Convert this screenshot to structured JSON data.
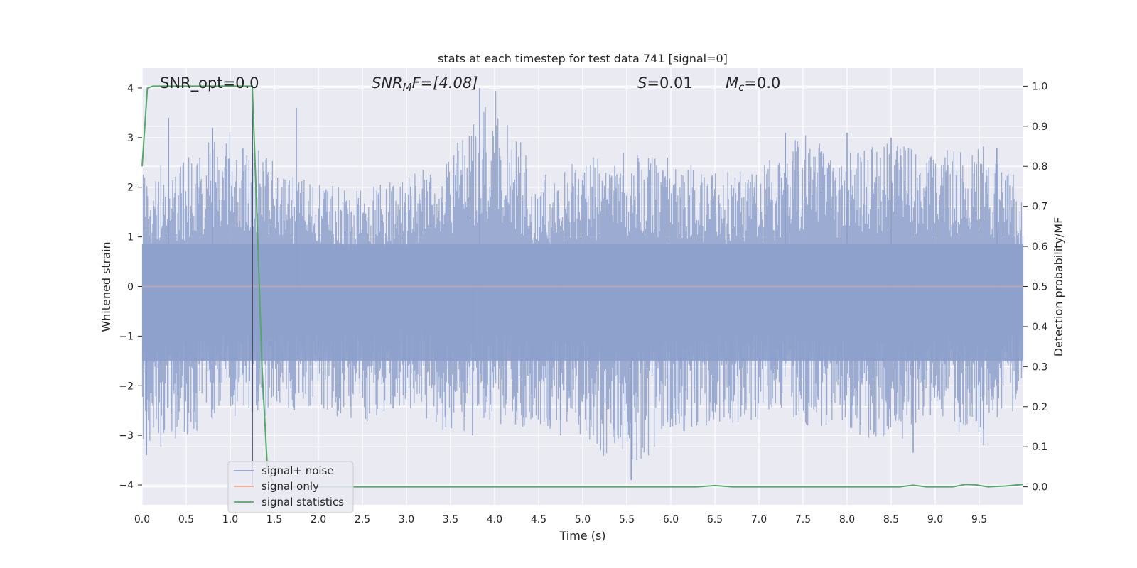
{
  "chart_data": {
    "type": "line",
    "title": "stats at each timestep for test data 741 [signal=0]",
    "xlabel": "Time (s)",
    "ylabel_left": "Whitened strain",
    "ylabel_right": "Detection probability/MF",
    "xlim": [
      0.0,
      10.0
    ],
    "ylim_left": [
      -4.4,
      4.4
    ],
    "ylim_right": [
      -0.045,
      1.045
    ],
    "xticks": [
      "0.0",
      "0.5",
      "1.0",
      "1.5",
      "2.0",
      "2.5",
      "3.0",
      "3.5",
      "4.0",
      "4.5",
      "5.0",
      "5.5",
      "6.0",
      "6.5",
      "7.0",
      "7.5",
      "8.0",
      "8.5",
      "9.0",
      "9.5"
    ],
    "yticks_left": [
      "4",
      "3",
      "2",
      "1",
      "0",
      "−1",
      "−2",
      "−3",
      "−4"
    ],
    "yticks_right": [
      "1.0",
      "0.9",
      "0.8",
      "0.7",
      "0.6",
      "0.5",
      "0.4",
      "0.3",
      "0.2",
      "0.1",
      "0.0"
    ],
    "grid": true,
    "legend_position": "lower-left",
    "annotations": {
      "snr_opt": "SNR_opt=0.0",
      "snr_mf_sym": "SNR",
      "snr_mf_sub": "M",
      "snr_mf_rest": "F=[4.08]",
      "s_sym": "S",
      "s_rest": "=0.01",
      "mc_sym": "M",
      "mc_sub": "c",
      "mc_rest": "=0.0"
    },
    "vertical_marker_x": 1.25,
    "series": [
      {
        "name": "signal+ noise",
        "color": "#8da0cb",
        "axis": "left",
        "style": "dense-noise",
        "envelope": {
          "x": [
            0.0,
            0.5,
            1.0,
            1.5,
            2.0,
            2.5,
            3.0,
            3.5,
            4.0,
            4.5,
            5.0,
            5.5,
            6.0,
            6.5,
            7.0,
            7.5,
            8.0,
            8.5,
            9.0,
            9.5,
            10.0
          ],
          "upper": [
            2.4,
            2.6,
            3.2,
            2.5,
            2.1,
            2.0,
            2.2,
            2.7,
            4.0,
            2.2,
            2.6,
            2.7,
            2.6,
            2.3,
            2.4,
            3.1,
            2.7,
            3.0,
            2.7,
            2.9,
            2.1
          ],
          "lower": [
            -3.4,
            -3.0,
            -2.7,
            -2.6,
            -2.5,
            -2.8,
            -2.4,
            -3.0,
            -2.8,
            -2.9,
            -3.0,
            -3.9,
            -3.0,
            -2.8,
            -2.7,
            -2.8,
            -3.0,
            -3.3,
            -2.7,
            -3.2,
            -2.3
          ]
        },
        "spikes": [
          {
            "x": 0.3,
            "y": 3.4
          },
          {
            "x": 0.8,
            "y": 3.2
          },
          {
            "x": 1.25,
            "y": 2.8
          },
          {
            "x": 1.75,
            "y": 3.6
          },
          {
            "x": 3.83,
            "y": 4.0
          },
          {
            "x": 7.3,
            "y": 3.1
          },
          {
            "x": 8.0,
            "y": 3.1
          },
          {
            "x": 8.5,
            "y": 3.0
          },
          {
            "x": 9.7,
            "y": 2.8
          },
          {
            "x": 0.05,
            "y": -3.4
          },
          {
            "x": 8.75,
            "y": -3.35
          },
          {
            "x": 5.55,
            "y": -3.9
          },
          {
            "x": 9.55,
            "y": -3.2
          },
          {
            "x": 3.75,
            "y": -3.0
          },
          {
            "x": 4.75,
            "y": -3.0
          }
        ]
      },
      {
        "name": "signal only",
        "color": "#f4a582",
        "axis": "left",
        "x": [
          0.0,
          10.0
        ],
        "y": [
          0.0,
          0.0
        ]
      },
      {
        "name": "signal statistics",
        "color": "#55a868",
        "axis": "right",
        "x": [
          0.0,
          0.06,
          0.12,
          0.3,
          0.6,
          0.9,
          1.2,
          1.25,
          1.3,
          1.36,
          1.42,
          1.5,
          2.0,
          3.0,
          4.0,
          5.0,
          6.0,
          6.3,
          6.5,
          6.7,
          7.0,
          8.0,
          8.6,
          8.75,
          8.9,
          9.2,
          9.35,
          9.45,
          9.6,
          9.8,
          10.0
        ],
        "y": [
          0.8,
          0.995,
          1.0,
          1.0,
          1.0,
          1.0,
          1.0,
          1.0,
          0.7,
          0.3,
          0.05,
          0.0,
          0.0,
          0.0,
          0.0,
          0.0,
          0.0,
          0.0,
          0.003,
          0.0,
          0.0,
          0.0,
          0.0,
          0.004,
          0.0,
          0.0,
          0.006,
          0.005,
          0.0,
          0.002,
          0.006
        ]
      }
    ]
  }
}
